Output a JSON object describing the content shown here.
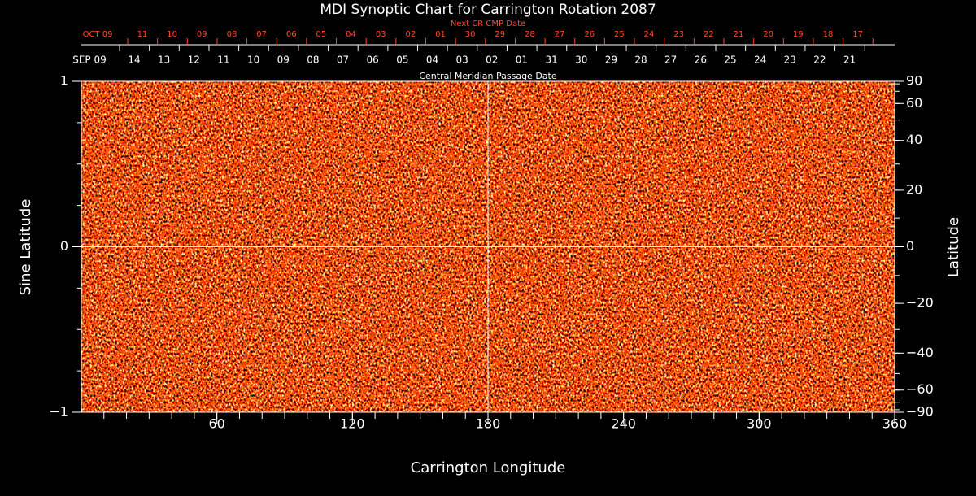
{
  "chart_data": {
    "type": "synoptic",
    "title": "MDI Synoptic Chart for Carrington Rotation 2087",
    "next_cr_label": "Next CR CMP Date",
    "next_cr_dates": [
      "OCT 09",
      "11",
      "10",
      "09",
      "08",
      "07",
      "06",
      "05",
      "04",
      "03",
      "02",
      "01",
      "30",
      "29",
      "28",
      "27",
      "26",
      "25",
      "24",
      "23",
      "22",
      "21",
      "20",
      "19",
      "18",
      "17"
    ],
    "cmp_dates": [
      "SEP 09",
      "14",
      "13",
      "12",
      "11",
      "10",
      "09",
      "08",
      "07",
      "06",
      "05",
      "04",
      "03",
      "02",
      "01",
      "31",
      "30",
      "29",
      "28",
      "27",
      "26",
      "25",
      "24",
      "23",
      "22",
      "21"
    ],
    "cmp_label": "Central Meridian Passage Date",
    "x_label": "Carrington Longitude",
    "y_label": "Sine Latitude",
    "y2_label": "Latitude",
    "xlim": [
      0,
      360
    ],
    "xticks": [
      60,
      120,
      180,
      240,
      300,
      360
    ],
    "ylim": [
      -1,
      1
    ],
    "yticks": [
      {
        "value": -1,
        "label": "−1"
      },
      0,
      1
    ],
    "y2scale": "sine",
    "y2ticks": [
      90,
      60,
      40,
      20,
      0,
      {
        "value": -20,
        "label": "−20"
      },
      {
        "value": -40,
        "label": "−40"
      },
      {
        "value": -60,
        "label": "−60"
      },
      {
        "value": -90,
        "label": "−90"
      }
    ],
    "crosshair": {
      "x": 180,
      "y": 0
    }
  }
}
